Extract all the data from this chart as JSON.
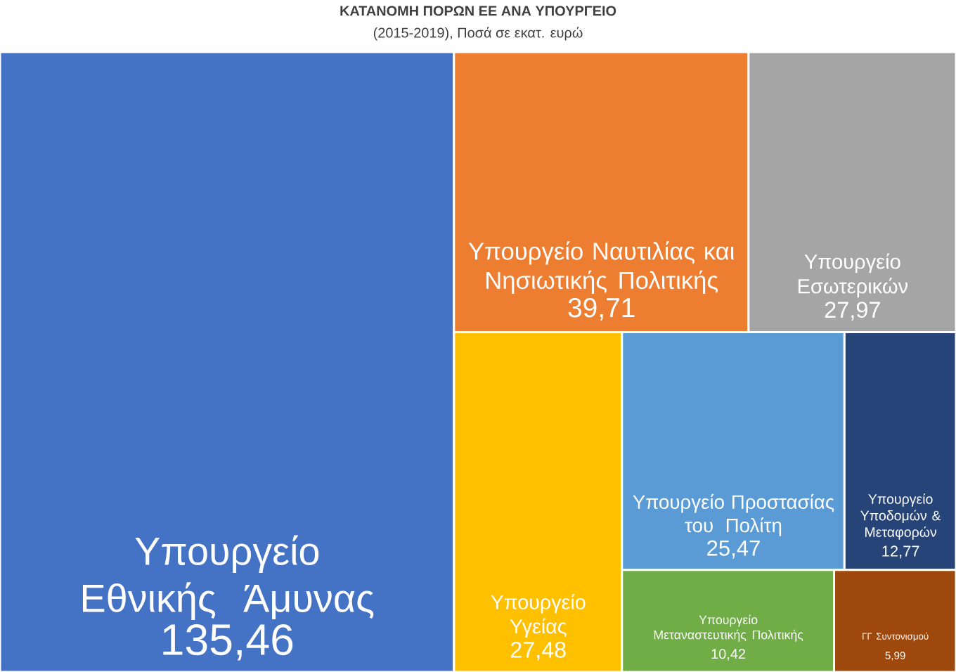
{
  "chart_data": {
    "type": "other",
    "title": "ΚΑΤΑΝΟΜΗ ΠΟΡΩΝ ΕΕ ΑΝΑ ΥΠΟΥΡΓΕΙΟ",
    "subtitle": "(2015-2019), Ποσά σε εκατ. ευρώ",
    "categories": [
      "Υπουργείο Εθνικής Άμυνας",
      "Υπουργείο Ναυτιλίας και Νησιωτικής Πολιτικής",
      "Υπουργείο Εσωτερικών",
      "Υπουργείο Υγείας",
      "Υπουργείο Προστασίας του Πολίτη",
      "Υπουργείο Υποδομών & Μεταφορών",
      "Υπουργείο Μεταναστευτικής Πολιτικής",
      "ΓΓ Συντονισμού"
    ],
    "values": [
      135.46,
      39.71,
      27.97,
      27.48,
      25.47,
      12.77,
      10.42,
      5.99
    ],
    "value_labels": [
      "135,46",
      "39,71",
      "27,97",
      "27,48",
      "25,47",
      "12,77",
      "10,42",
      "5,99"
    ],
    "colors": [
      "#4472c4",
      "#ed7d31",
      "#a5a5a5",
      "#ffc000",
      "#5b9bd5",
      "#264478",
      "#70ad47",
      "#9e480e"
    ]
  }
}
